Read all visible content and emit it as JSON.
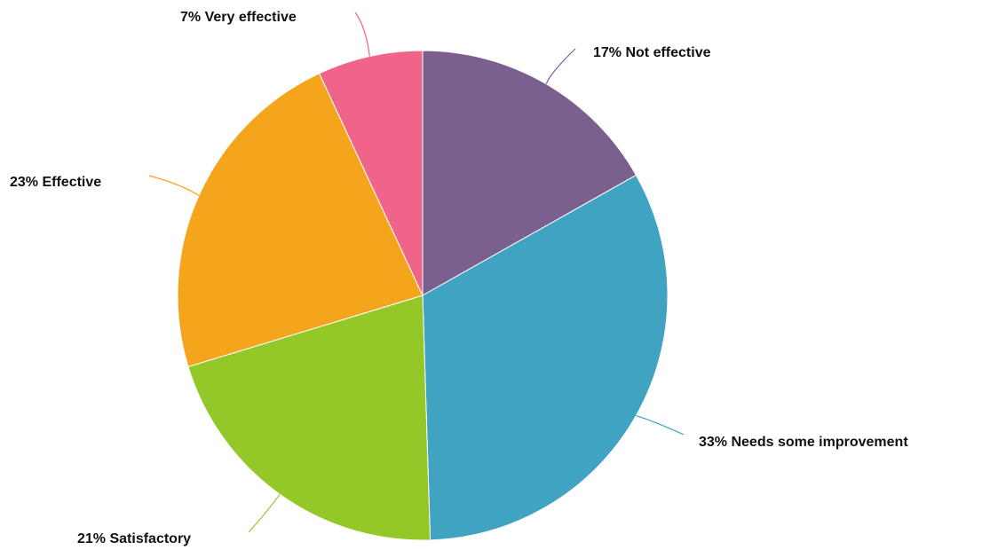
{
  "chart_data": {
    "type": "pie",
    "start_angle_deg": 0,
    "direction": "clockwise",
    "slices": [
      {
        "label": "17% Not effective",
        "value": 17,
        "color": "#7b5f8f"
      },
      {
        "label": "33% Needs some improvement",
        "value": 33,
        "color": "#3fa3c1"
      },
      {
        "label": "21% Satisfactory",
        "value": 21,
        "color": "#94c829"
      },
      {
        "label": "23% Effective",
        "value": 23,
        "color": "#f4a51b"
      },
      {
        "label": "7% Very effective",
        "value": 7,
        "color": "#f0648a"
      }
    ]
  }
}
